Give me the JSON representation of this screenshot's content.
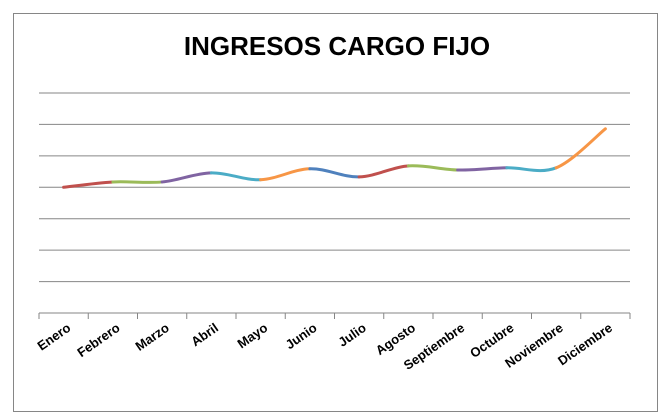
{
  "chart_data": {
    "type": "line",
    "title": "INGRESOS CARGO FIJO",
    "categories": [
      "Enero",
      "Febrero",
      "Marzo",
      "Abril",
      "Mayo",
      "Junio",
      "Julio",
      "Agosto",
      "Septiembre",
      "Octubre",
      "Noviembre",
      "Diciembre"
    ],
    "values": [
      4.0,
      4.17,
      4.17,
      4.46,
      4.24,
      4.59,
      4.33,
      4.68,
      4.55,
      4.62,
      4.62,
      5.86
    ],
    "segment_colors": [
      "#c0504d",
      "#9bbb59",
      "#8064a2",
      "#4bacc6",
      "#f79646",
      "#4f81bd",
      "#c0504d",
      "#9bbb59",
      "#8064a2",
      "#4bacc6",
      "#f79646"
    ],
    "ylim": [
      0,
      7
    ],
    "yticks": [
      0,
      1,
      2,
      3,
      4,
      5,
      6,
      7
    ],
    "grid": true,
    "y_tick_labels": false,
    "smooth": true
  }
}
